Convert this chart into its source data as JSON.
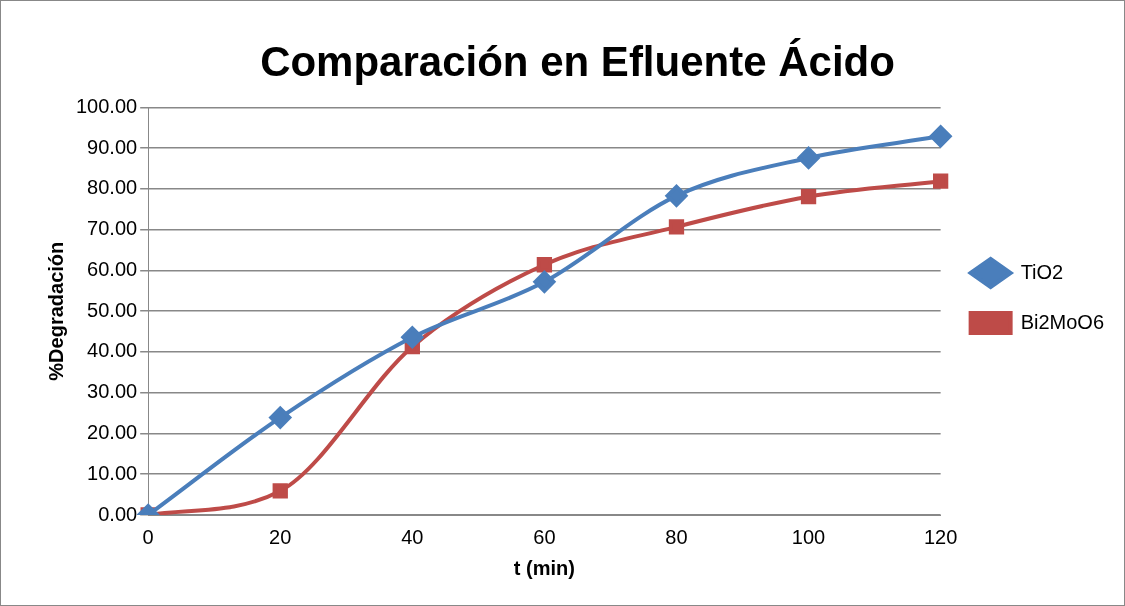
{
  "chart_data": {
    "type": "line",
    "title": "Comparación en Efluente Ácido",
    "xlabel": "t (min)",
    "ylabel": "%Degradación",
    "categories": [
      "0",
      "20",
      "40",
      "60",
      "80",
      "100",
      "120"
    ],
    "series": [
      {
        "name": "TiO2",
        "color": "#4a7ebb",
        "marker": "diamond",
        "values": [
          0,
          23.9,
          43.6,
          57.2,
          78.3,
          87.6,
          92.9
        ]
      },
      {
        "name": "Bi2MoO6",
        "color": "#be4b48",
        "marker": "square",
        "values": [
          0,
          5.9,
          41.3,
          61.4,
          70.7,
          78.1,
          81.9
        ]
      }
    ],
    "ylim": [
      0,
      100
    ],
    "yticks": [
      {
        "value": 0,
        "label": "0.00"
      },
      {
        "value": 10,
        "label": "10.00"
      },
      {
        "value": 20,
        "label": "20.00"
      },
      {
        "value": 30,
        "label": "30.00"
      },
      {
        "value": 40,
        "label": "40.00"
      },
      {
        "value": 50,
        "label": "50.00"
      },
      {
        "value": 60,
        "label": "60.00"
      },
      {
        "value": 70,
        "label": "70.00"
      },
      {
        "value": 80,
        "label": "80.00"
      },
      {
        "value": 90,
        "label": "90.00"
      },
      {
        "value": 100,
        "label": "100.00"
      }
    ],
    "grid": "y",
    "legend": "right",
    "line_style": "solid"
  }
}
